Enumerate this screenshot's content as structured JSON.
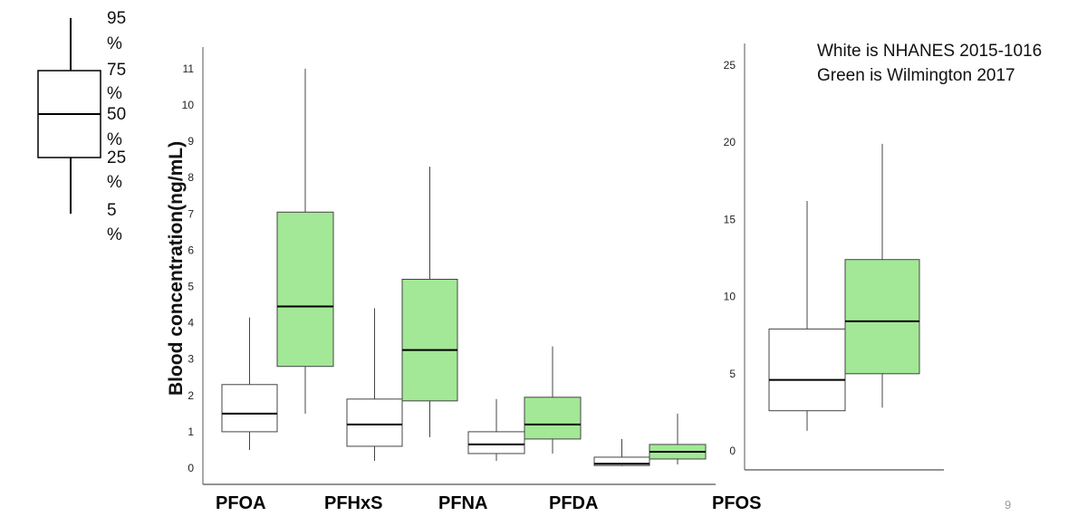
{
  "chart_data": [
    {
      "type": "boxplot",
      "ylabel": "Blood concentration(ng/mL)",
      "ylim": [
        0,
        11
      ],
      "yticks": [
        0,
        1,
        2,
        3,
        4,
        5,
        6,
        7,
        8,
        9,
        10,
        11
      ],
      "categories": [
        "PFOA",
        "PFHxS",
        "PFNA",
        "PFDA"
      ],
      "series": [
        {
          "name": "NHANES 2015-1016",
          "color": "#ffffff",
          "boxes": [
            {
              "min": 0.5,
              "q1": 1.0,
              "median": 1.5,
              "q3": 2.3,
              "max": 4.15
            },
            {
              "min": 0.2,
              "q1": 0.6,
              "median": 1.2,
              "q3": 1.9,
              "max": 4.4
            },
            {
              "min": 0.2,
              "q1": 0.4,
              "median": 0.65,
              "q3": 1.0,
              "max": 1.9
            },
            {
              "min": 0.05,
              "q1": 0.07,
              "median": 0.12,
              "q3": 0.3,
              "max": 0.8
            }
          ]
        },
        {
          "name": "Wilmington 2017",
          "color": "#a3e896",
          "boxes": [
            {
              "min": 1.5,
              "q1": 2.8,
              "median": 4.45,
              "q3": 7.05,
              "max": 11.0
            },
            {
              "min": 0.85,
              "q1": 1.85,
              "median": 3.25,
              "q3": 5.2,
              "max": 8.3
            },
            {
              "min": 0.4,
              "q1": 0.8,
              "median": 1.2,
              "q3": 1.95,
              "max": 3.35
            },
            {
              "min": 0.1,
              "q1": 0.25,
              "median": 0.45,
              "q3": 0.65,
              "max": 1.5
            }
          ]
        }
      ]
    },
    {
      "type": "boxplot",
      "ylim": [
        0,
        25
      ],
      "yticks": [
        0,
        5,
        10,
        15,
        20,
        25
      ],
      "categories": [
        "PFOS"
      ],
      "series": [
        {
          "name": "NHANES 2015-1016",
          "color": "#ffffff",
          "boxes": [
            {
              "min": 1.3,
              "q1": 2.6,
              "median": 4.6,
              "q3": 7.9,
              "max": 16.2
            }
          ]
        },
        {
          "name": "Wilmington 2017",
          "color": "#a3e896",
          "boxes": [
            {
              "min": 2.8,
              "q1": 5.0,
              "median": 8.4,
              "q3": 12.4,
              "max": 19.9
            }
          ]
        }
      ]
    }
  ],
  "legend_key": {
    "labels": [
      [
        "95",
        "%"
      ],
      [
        "75",
        "%"
      ],
      [
        "50",
        "%"
      ],
      [
        "25",
        "%"
      ],
      [
        "5",
        "%"
      ]
    ]
  },
  "notes": [
    "White is NHANES 2015-1016",
    "Green is Wilmington 2017"
  ],
  "page_number": "9"
}
